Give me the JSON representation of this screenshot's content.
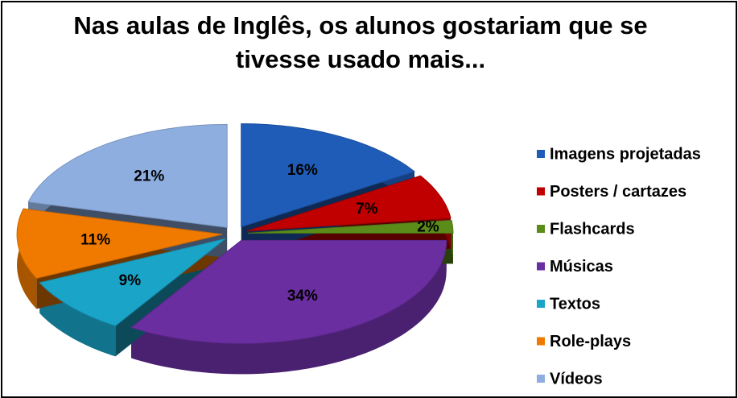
{
  "chart_data": {
    "type": "pie",
    "title": "Nas aulas de Inglês, os alunos gostariam que se tivesse usado mais...",
    "categories": [
      "Imagens projetadas",
      "Posters / cartazes",
      "Flashcards",
      "Músicas",
      "Textos",
      "Role-plays",
      "Vídeos"
    ],
    "values": [
      16,
      7,
      2,
      34,
      9,
      11,
      21
    ],
    "value_labels": [
      "16%",
      "7%",
      "2%",
      "34%",
      "9%",
      "11%",
      "21%"
    ],
    "colors": [
      "#1f5cb8",
      "#c00000",
      "#5b8c1a",
      "#6a2ea0",
      "#1aa4c8",
      "#f07a00",
      "#8eaee0"
    ],
    "legend": "right"
  }
}
